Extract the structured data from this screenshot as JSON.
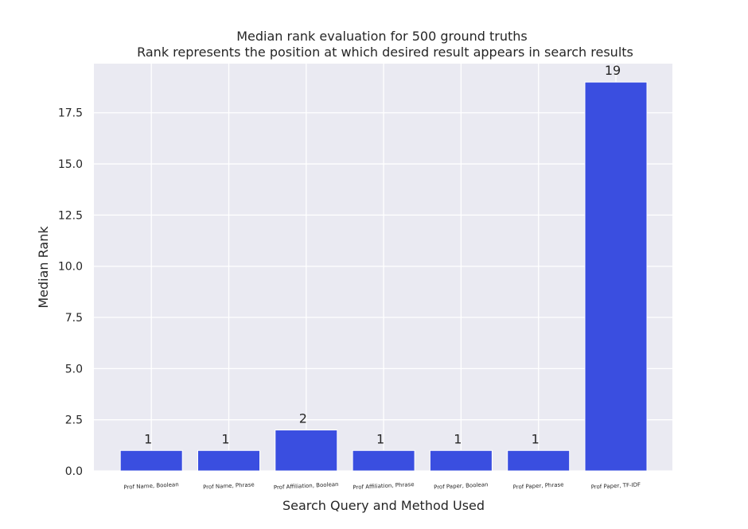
{
  "chart_data": {
    "type": "bar",
    "title": "Median rank evaluation for 500 ground truths",
    "subtitle": "Rank represents the position at which desired result appears in search results",
    "xlabel": "Search Query and Method Used",
    "ylabel": "Median Rank",
    "categories": [
      "Prof Name, Boolean",
      "Prof Name, Phrase",
      "Prof Affiliation, Boolean",
      "Prof Affiliation, Phrase",
      "Prof Paper, Boolean",
      "Prof Paper, Phrase",
      "Prof Paper, TF-IDF"
    ],
    "values": [
      1,
      1,
      2,
      1,
      1,
      1,
      19
    ],
    "data_labels": [
      "1",
      "1",
      "2",
      "1",
      "1",
      "1",
      "19"
    ],
    "ylim": [
      0,
      19.9
    ],
    "yticks": [
      0,
      2.5,
      5,
      7.5,
      10,
      12.5,
      15,
      17.5
    ],
    "ytick_labels": [
      "0.0",
      "2.5",
      "5.0",
      "7.5",
      "10.0",
      "12.5",
      "15.0",
      "17.5"
    ],
    "grid": true,
    "colors": {
      "bar": "#3a4ee0",
      "plot_bg": "#eaeaf2",
      "grid": "#ffffff",
      "text": "#262626"
    }
  }
}
